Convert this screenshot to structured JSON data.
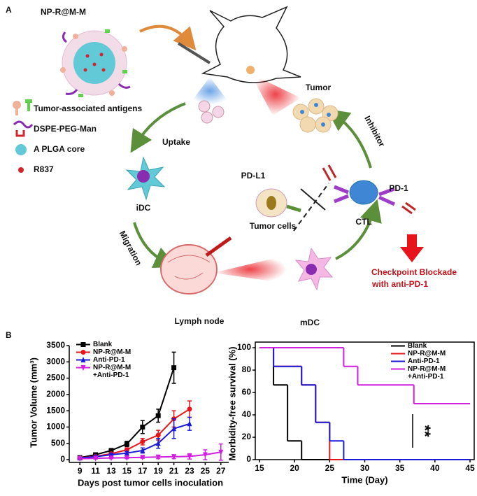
{
  "panel_a": {
    "label": "A",
    "nanoparticle": "NP-R@M-M",
    "legend": [
      "Tumor-associated antigens",
      "DSPE-PEG-Man",
      "A PLGA core",
      "R837"
    ],
    "uptake": "Uptake",
    "idc": "iDC",
    "migration": "Migration",
    "lymph_node": "Lymph node",
    "mdc": "mDC",
    "tumor": "Tumor",
    "inhibitor": "Inhibitor",
    "pd_l1": "PD-L1",
    "tumor_cells": "Tumor cells",
    "ctl": "CTL",
    "pd_1": "PD-1",
    "blockade": [
      "Checkpoint Blockade",
      "with anti-PD-1"
    ]
  },
  "panel_b_label": "B",
  "chart_data": [
    {
      "type": "line",
      "y_label": "Tumor Volume (mm³)",
      "x_label": "Days post tumor cells inoculation",
      "xlim": [
        8,
        28
      ],
      "xticks": [
        9,
        11,
        13,
        15,
        17,
        19,
        21,
        23,
        25,
        27
      ],
      "ylim": [
        0,
        3500
      ],
      "yticks": [
        0,
        500,
        1000,
        1500,
        2000,
        2500,
        3000,
        3500
      ],
      "series": [
        {
          "name": "Blank",
          "color": "#000000",
          "marker": "square",
          "x": [
            9,
            11,
            13,
            15,
            17,
            19,
            21
          ],
          "values": [
            60,
            150,
            280,
            480,
            1000,
            1350,
            2820
          ],
          "errors": [
            30,
            40,
            60,
            80,
            200,
            200,
            480
          ]
        },
        {
          "name": "NP-R@M-M",
          "color": "#e8141b",
          "marker": "circle",
          "x": [
            9,
            11,
            13,
            15,
            17,
            19,
            21,
            23
          ],
          "values": [
            50,
            100,
            180,
            300,
            550,
            750,
            1250,
            1550
          ],
          "errors": [
            20,
            30,
            40,
            60,
            100,
            150,
            250,
            250
          ]
        },
        {
          "name": "Anti-PD-1",
          "color": "#1a1adc",
          "marker": "triangle-up",
          "x": [
            9,
            11,
            13,
            15,
            17,
            19,
            21,
            23
          ],
          "values": [
            50,
            90,
            150,
            200,
            280,
            500,
            950,
            1100
          ],
          "errors": [
            20,
            30,
            40,
            50,
            80,
            150,
            300,
            200
          ]
        },
        {
          "name": "NP-R@M-M\n+Anti-PD-1",
          "color": "#d21ee0",
          "marker": "triangle-down",
          "x": [
            9,
            11,
            13,
            15,
            17,
            19,
            21,
            23,
            25,
            27
          ],
          "values": [
            30,
            40,
            50,
            60,
            70,
            80,
            90,
            100,
            150,
            230
          ],
          "errors": [
            20,
            20,
            20,
            30,
            30,
            50,
            60,
            80,
            150,
            250
          ]
        }
      ]
    },
    {
      "type": "step",
      "y_label": "Morbidity-free survival (%)",
      "x_label": "Time (Day)",
      "xlim": [
        15,
        45
      ],
      "xticks": [
        15,
        20,
        25,
        30,
        35,
        40,
        45
      ],
      "ylim": [
        0,
        100
      ],
      "yticks": [
        0,
        20,
        40,
        60,
        80,
        100
      ],
      "annotation": "**",
      "series": [
        {
          "name": "Blank",
          "color": "#000000",
          "x": [
            15,
            17,
            19,
            21,
            45
          ],
          "values": [
            100,
            66.7,
            16.7,
            0,
            0
          ]
        },
        {
          "name": "NP-R@M-M",
          "color": "#e8141b",
          "x": [
            15,
            17,
            21,
            23,
            25,
            45
          ],
          "values": [
            100,
            83.3,
            66.7,
            33.3,
            0,
            0
          ]
        },
        {
          "name": "Anti-PD-1",
          "color": "#1a1adc",
          "x": [
            15,
            17,
            21,
            23,
            25,
            27,
            45
          ],
          "values": [
            100,
            83.3,
            66.7,
            33.3,
            16.7,
            0,
            0
          ]
        },
        {
          "name": "NP-R@M-M\n+Anti-PD-1",
          "color": "#d21ee0",
          "x": [
            15,
            27,
            29,
            37,
            45
          ],
          "values": [
            100,
            83.3,
            66.7,
            50,
            50
          ]
        }
      ]
    }
  ]
}
